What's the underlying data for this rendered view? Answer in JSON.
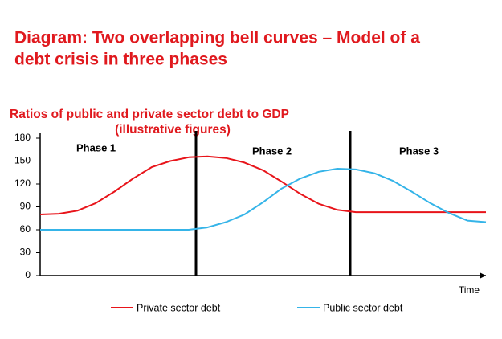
{
  "header": {
    "title": "Diagram: Two overlapping bell curves – Model of a debt crisis in three phases"
  },
  "chart_data": {
    "type": "line",
    "title": "Ratios of public and private sector debt to GDP",
    "subtitle": "(illustrative figures)",
    "x_label": "Time",
    "annotations": [
      "Phase 1",
      "Phase 2",
      "Phase 3"
    ],
    "categories": [
      null,
      null,
      null,
      null,
      null,
      null,
      null,
      null,
      null,
      null,
      null,
      null,
      null,
      null,
      null,
      null,
      null,
      null,
      null,
      null,
      null,
      null,
      null,
      null,
      null
    ],
    "series": [
      {
        "name": "Private sector debt",
        "color": "#e8141a",
        "values": [
          80,
          81,
          85,
          95,
          110,
          127,
          142,
          150,
          155,
          156,
          154,
          148,
          138,
          123,
          107,
          94,
          86,
          83,
          83,
          83,
          83,
          83,
          83,
          83,
          83
        ]
      },
      {
        "name": "Public sector debt",
        "color": "#35b4e8",
        "values": [
          60,
          60,
          60,
          60,
          60,
          60,
          60,
          60,
          60,
          63,
          70,
          80,
          96,
          114,
          127,
          136,
          140,
          139,
          134,
          124,
          110,
          95,
          82,
          72,
          70
        ]
      }
    ],
    "ylim": [
      0,
      180
    ],
    "yticks": [
      0,
      30,
      60,
      90,
      120,
      150,
      180
    ],
    "legend": "bottom"
  }
}
